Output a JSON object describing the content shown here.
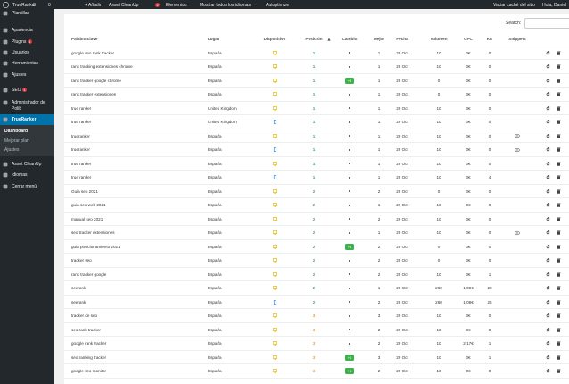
{
  "admin_bar": {
    "site": "TrueRanker",
    "updates": "3",
    "comments": "0",
    "new": "+ Añadir",
    "asset": "Asset CleanUp",
    "badge": "2",
    "elements": "Elementos",
    "languages": "Mostrar todos los idiomas",
    "autoptimize": "Autoptimize",
    "cache": "Vaciar caché del sitio",
    "greeting": "Hola, Daniel"
  },
  "sidebar": {
    "items": [
      {
        "label": "Plantillas"
      },
      {
        "label": "Apariencia"
      },
      {
        "label": "Plugins",
        "badge": "1"
      },
      {
        "label": "Usuarios"
      },
      {
        "label": "Herramientas"
      },
      {
        "label": "Ajustes"
      },
      {
        "label": "SEO",
        "badge": "1"
      },
      {
        "label": "Administrador de Polib"
      },
      {
        "label": "TrueRanker",
        "active": true,
        "submenu": [
          "Dashboard",
          "Mejorar plan",
          "Ajustes"
        ]
      },
      {
        "label": "Asset CleanUp"
      },
      {
        "label": "Idiomas"
      },
      {
        "label": "Cerrar menú"
      }
    ]
  },
  "search_label": "Search:",
  "table": {
    "columns": [
      "Palabra clave",
      "Lugar",
      "Dispositivo",
      "Posición",
      "Cambio",
      "Mejor",
      "Fecha",
      "Volumen",
      "CPC",
      "KE",
      "Snippets"
    ],
    "rows": [
      {
        "keyword": "google seo rank tracker",
        "place": "España",
        "device": "desktop",
        "position": 1,
        "change": null,
        "best": 1,
        "date": "29 Oct",
        "volume": 10,
        "cpc": "0€",
        "ke": 0
      },
      {
        "keyword": "rank tracking extensiones chrome",
        "place": "España",
        "device": "desktop",
        "position": 1,
        "change": null,
        "best": 1,
        "date": "29 Oct",
        "volume": 10,
        "cpc": "0€",
        "ke": 0
      },
      {
        "keyword": "rank tracker google chrome",
        "place": "España",
        "device": "desktop",
        "position": 1,
        "change": "+3",
        "best": 1,
        "date": "29 Oct",
        "volume": 0,
        "cpc": "0€",
        "ke": 0
      },
      {
        "keyword": "rank tracker extensiones",
        "place": "España",
        "device": "desktop",
        "position": 1,
        "change": null,
        "best": 1,
        "date": "29 Oct",
        "volume": 0,
        "cpc": "0€",
        "ke": 0
      },
      {
        "keyword": "true ranker",
        "place": "United Kingdom",
        "device": "desktop",
        "position": 1,
        "change": null,
        "best": 1,
        "date": "29 Oct",
        "volume": 10,
        "cpc": "0€",
        "ke": 0
      },
      {
        "keyword": "true ranker",
        "place": "United Kingdom",
        "device": "mobile",
        "position": 1,
        "change": null,
        "best": 1,
        "date": "29 Oct",
        "volume": 10,
        "cpc": "0€",
        "ke": 0
      },
      {
        "keyword": "trueranker",
        "place": "España",
        "device": "desktop",
        "position": 1,
        "change": null,
        "best": 1,
        "date": "29 Oct",
        "volume": 10,
        "cpc": "0€",
        "ke": 0,
        "snippet": true
      },
      {
        "keyword": "trueranker",
        "place": "España",
        "device": "mobile",
        "position": 1,
        "change": null,
        "best": 1,
        "date": "29 Oct",
        "volume": 10,
        "cpc": "0€",
        "ke": 0,
        "snippet": true
      },
      {
        "keyword": "true ranker",
        "place": "España",
        "device": "desktop",
        "position": 1,
        "change": null,
        "best": 1,
        "date": "29 Oct",
        "volume": 10,
        "cpc": "0€",
        "ke": 0
      },
      {
        "keyword": "true ranker",
        "place": "España",
        "device": "mobile",
        "position": 1,
        "change": null,
        "best": 1,
        "date": "29 Oct",
        "volume": 10,
        "cpc": "0€",
        "ke": 4
      },
      {
        "keyword": "Guia seo 2021",
        "place": "España",
        "device": "desktop",
        "position": 2,
        "change": null,
        "best": 2,
        "date": "29 Oct",
        "volume": 0,
        "cpc": "0€",
        "ke": 0
      },
      {
        "keyword": "guia seo web 2021",
        "place": "España",
        "device": "desktop",
        "position": 2,
        "change": null,
        "best": 1,
        "date": "29 Oct",
        "volume": 10,
        "cpc": "0€",
        "ke": 0
      },
      {
        "keyword": "manual seo 2021",
        "place": "España",
        "device": "desktop",
        "position": 2,
        "change": null,
        "best": 2,
        "date": "29 Oct",
        "volume": 10,
        "cpc": "0€",
        "ke": 0
      },
      {
        "keyword": "seo tracker extensiones",
        "place": "España",
        "device": "desktop",
        "position": 2,
        "change": null,
        "best": 1,
        "date": "29 Oct",
        "volume": 10,
        "cpc": "0€",
        "ke": 0,
        "snippet": true
      },
      {
        "keyword": "guia posicionamiento 2021",
        "place": "España",
        "device": "desktop",
        "position": 2,
        "change": "+3",
        "best": 2,
        "date": "29 Oct",
        "volume": 0,
        "cpc": "0€",
        "ke": 0
      },
      {
        "keyword": "tracker seo",
        "place": "España",
        "device": "desktop",
        "position": 2,
        "change": null,
        "best": 2,
        "date": "29 Oct",
        "volume": 0,
        "cpc": "0€",
        "ke": 0
      },
      {
        "keyword": "rank tracker google",
        "place": "España",
        "device": "desktop",
        "position": 2,
        "change": null,
        "best": 2,
        "date": "29 Oct",
        "volume": 10,
        "cpc": "0€",
        "ke": 1
      },
      {
        "keyword": "seerank",
        "place": "España",
        "device": "desktop",
        "position": 2,
        "change": null,
        "best": 1,
        "date": "29 Oct",
        "volume": 260,
        "cpc": "1,08€",
        "ke": 20
      },
      {
        "keyword": "seerank",
        "place": "España",
        "device": "mobile",
        "position": 2,
        "change": null,
        "best": 2,
        "date": "29 Oct",
        "volume": 260,
        "cpc": "1,08€",
        "ke": 25
      },
      {
        "keyword": "tracker de seo",
        "place": "España",
        "device": "desktop",
        "position": 3,
        "change": null,
        "best": 3,
        "date": "29 Oct",
        "volume": 10,
        "cpc": "0€",
        "ke": 0
      },
      {
        "keyword": "seo rank tracker",
        "place": "España",
        "device": "desktop",
        "position": 3,
        "change": null,
        "best": 2,
        "date": "29 Oct",
        "volume": 10,
        "cpc": "0€",
        "ke": 0
      },
      {
        "keyword": "google rank tracker",
        "place": "España",
        "device": "desktop",
        "position": 3,
        "change": null,
        "best": 2,
        "date": "29 Oct",
        "volume": 10,
        "cpc": "2,17€",
        "ke": 1
      },
      {
        "keyword": "seo ranking tracker",
        "place": "España",
        "device": "desktop",
        "position": 3,
        "change": "+1",
        "best": 3,
        "date": "29 Oct",
        "volume": 10,
        "cpc": "0€",
        "ke": 1
      },
      {
        "keyword": "google seo monitor",
        "place": "España",
        "device": "desktop",
        "position": 3,
        "change": "+4",
        "best": 2,
        "date": "29 Oct",
        "volume": 10,
        "cpc": "0€",
        "ke": 0
      }
    ]
  }
}
